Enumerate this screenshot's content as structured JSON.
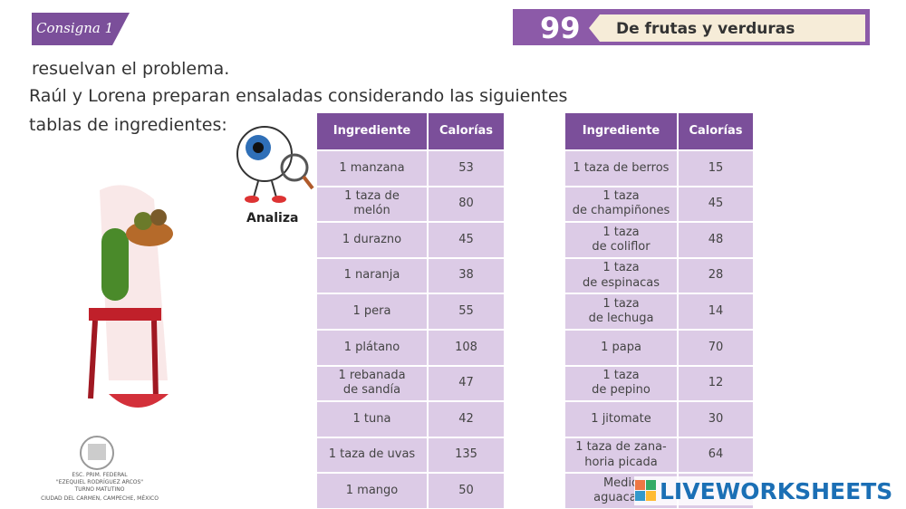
{
  "header": {
    "tag": "Consigna 1",
    "page_number": "99",
    "title": "De frutas y verduras"
  },
  "text": {
    "line1": "resuelvan el problema.",
    "line2": "Raúl y Lorena preparan ensaladas considerando las siguientes",
    "line3": "tablas de ingredientes:"
  },
  "icon_label": "Analiza",
  "table1": {
    "headers": [
      "Ingrediente",
      "Calorías"
    ],
    "rows": [
      [
        "1 manzana",
        53
      ],
      [
        "1 taza de\nmelón",
        80
      ],
      [
        "1 durazno",
        45
      ],
      [
        "1 naranja",
        38
      ],
      [
        "1 pera",
        55
      ],
      [
        "1 plátano",
        108
      ],
      [
        "1 rebanada\nde sandía",
        47
      ],
      [
        "1 tuna",
        42
      ],
      [
        "1 taza de uvas",
        135
      ],
      [
        "1 mango",
        50
      ]
    ]
  },
  "table2": {
    "headers": [
      "Ingrediente",
      "Calorías"
    ],
    "rows": [
      [
        "1 taza de berros",
        15
      ],
      [
        "1 taza\nde champiñones",
        45
      ],
      [
        "1 taza\nde coliflor",
        48
      ],
      [
        "1 taza\nde espinacas",
        28
      ],
      [
        "1 taza\nde lechuga",
        14
      ],
      [
        "1 papa",
        70
      ],
      [
        "1 taza\nde pepino",
        12
      ],
      [
        "1 jitomate",
        30
      ],
      [
        "1 taza de zana-\nhoria picada",
        64
      ],
      [
        "Medio\naguacate"
      ]
    ]
  },
  "school": {
    "line1": "ESC. PRIM. FEDERAL",
    "line2": "\"EZEQUIEL RODRÍGUEZ ARCOS\"",
    "line3": "TURNO MATUTINO",
    "line4": "CIUDAD DEL CARMEN, CAMPECHE, MÉXICO"
  },
  "watermark": "LIVEWORKSHEETS"
}
